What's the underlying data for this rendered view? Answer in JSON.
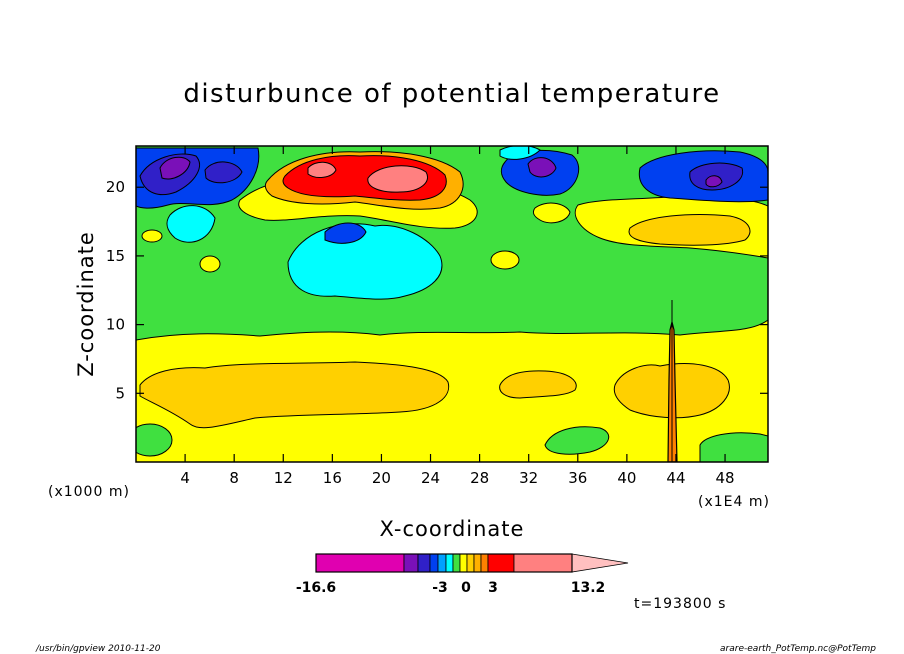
{
  "footer": {
    "left": "/usr/bin/gpview  2010-11-20",
    "right": "arare-earth_PotTemp.nc@PotTemp"
  },
  "chart_data": {
    "type": "heatmap",
    "title": "disturbunce of potential temperature",
    "xlabel": "X-coordinate",
    "ylabel": "Z-coordinate",
    "x_unit_label": "(x1000 m)",
    "x_scale_label": "(x1E4 m)",
    "time_label": "t=193800 s",
    "x_ticks": [
      4,
      8,
      12,
      16,
      20,
      24,
      28,
      32,
      36,
      40,
      44,
      48
    ],
    "y_ticks": [
      5,
      10,
      15,
      20
    ],
    "xlim": [
      0,
      51.5
    ],
    "ylim": [
      0,
      23
    ],
    "colorbar": {
      "colors": [
        "#e000b0",
        "#7a10b8",
        "#3020c8",
        "#0040f0",
        "#00a0ff",
        "#00ffff",
        "#40e040",
        "#ffff00",
        "#ffd000",
        "#ffb000",
        "#ff8000",
        "#ff0000",
        "#ff8080",
        "#ffc0c0"
      ],
      "labels": [
        {
          "text": "-16.6",
          "value": -16.6
        },
        {
          "text": "-3",
          "value": -3
        },
        {
          "text": "0",
          "value": 0
        },
        {
          "text": "3",
          "value": 3
        },
        {
          "text": "13.2",
          "value": 13.2
        }
      ]
    },
    "regions": [
      {
        "name": "upper-warm-core",
        "x": [
          13.5,
          27.5
        ],
        "z": [
          18.5,
          22.5
        ],
        "value": 10
      },
      {
        "name": "upper-cold-left",
        "x": [
          0,
          10
        ],
        "z": [
          17.5,
          23
        ],
        "value": -8
      },
      {
        "name": "upper-cold-mid",
        "x": [
          30,
          36
        ],
        "z": [
          19,
          22.5
        ],
        "value": -7
      },
      {
        "name": "upper-cold-right",
        "x": [
          41,
          51.5
        ],
        "z": [
          18,
          22
        ],
        "value": -6
      },
      {
        "name": "mid-cold-anomaly",
        "x": [
          12,
          25
        ],
        "z": [
          13,
          18.5
        ],
        "value": -2
      },
      {
        "name": "lower-warm-layer",
        "x": [
          0,
          51.5
        ],
        "z": [
          0,
          10
        ],
        "value": 1
      },
      {
        "name": "lower-warm-core",
        "x": [
          2,
          27
        ],
        "z": [
          2.5,
          7.5
        ],
        "value": 2
      },
      {
        "name": "narrow-plume",
        "x": [
          42.5,
          43.8
        ],
        "z": [
          0,
          11
        ],
        "value": 3
      }
    ]
  }
}
